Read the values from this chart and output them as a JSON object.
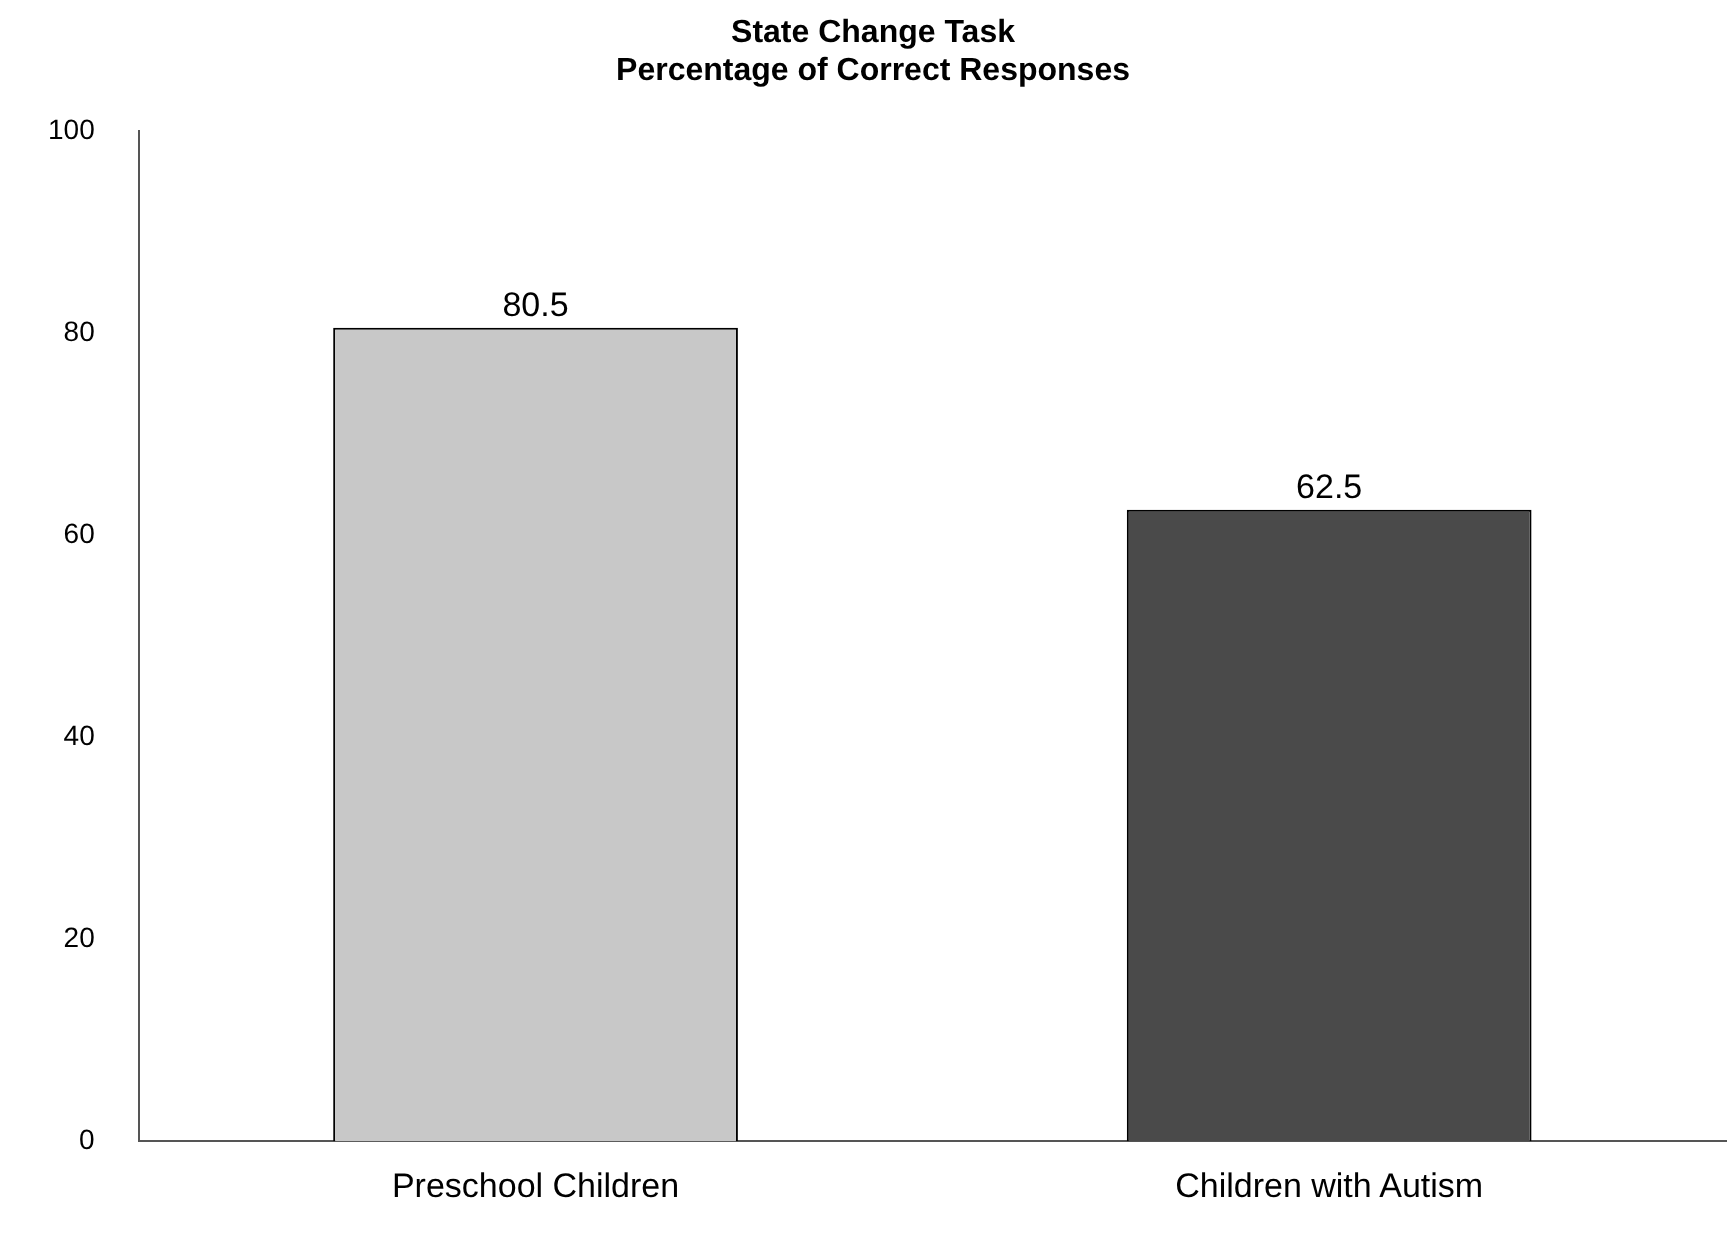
{
  "chart_data": {
    "type": "bar",
    "title": "State Change Task",
    "subtitle": "Percentage of Correct Responses",
    "categories": [
      "Preschool Children",
      "Children with Autism"
    ],
    "values": [
      80.5,
      62.5
    ],
    "colors": [
      "#c8c8c8",
      "#4a4a4a"
    ],
    "ylim": [
      0,
      100
    ],
    "yticks": [
      0,
      20,
      40,
      60,
      80,
      100
    ],
    "grid": false,
    "data_labels": true
  }
}
